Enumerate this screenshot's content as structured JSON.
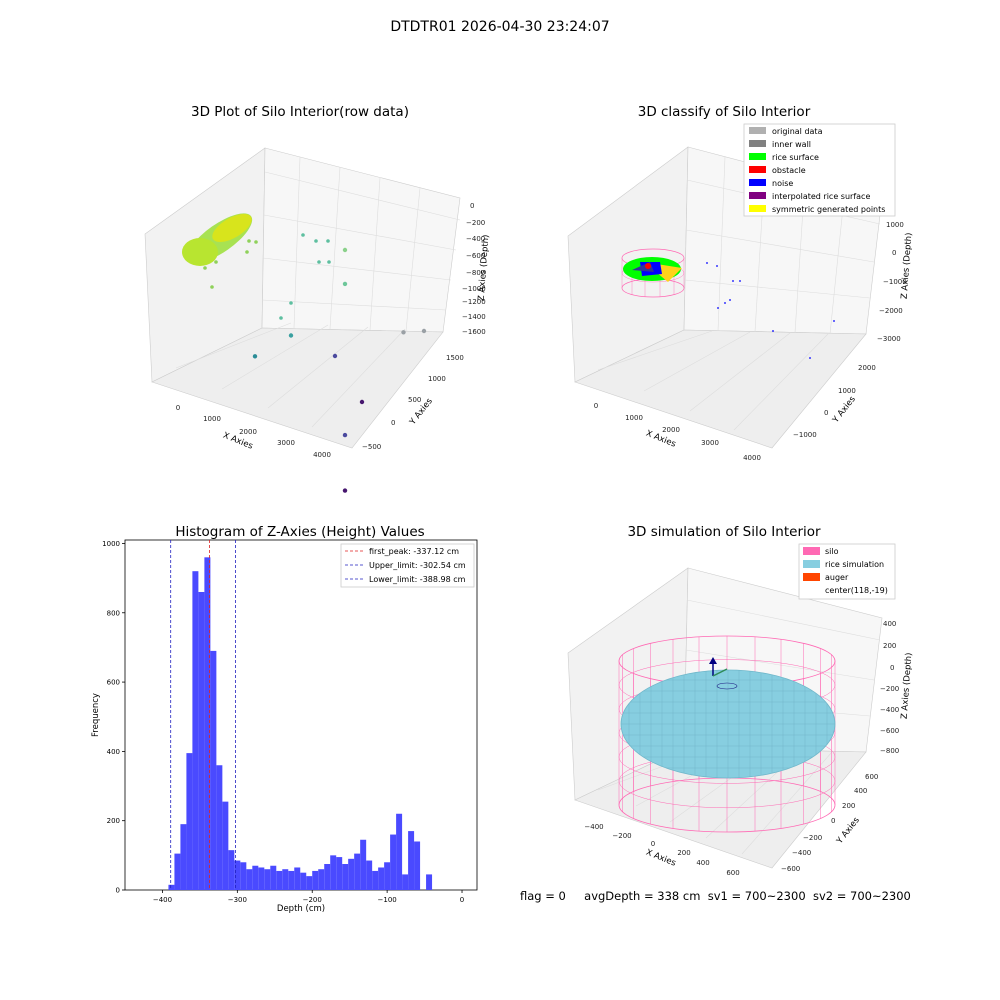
{
  "figure_title": "DTDTR01 2026-04-30 23:24:07",
  "footer": {
    "flag": "flag = 0",
    "avg_depth": "avgDepth = 338 cm",
    "sv1": "sv1 = 700~2300",
    "sv2": "sv2 = 700~2300"
  },
  "colors": {
    "histogram_bar": "#4a4aff",
    "first_peak_line": "#e02020",
    "limit_line": "#2020c0",
    "silo": "#ff69b4",
    "rice_simulation": "#87cee0",
    "auger": "#ff4500",
    "original_data": "#b0b0b0",
    "inner_wall": "#808080",
    "rice_surface": "#00ff00",
    "obstacle": "#ff0000",
    "noise": "#0000ff",
    "interpolated_rice_surface": "#800080",
    "symmetric_generated_points": "#ffff00"
  },
  "chart_data": [
    {
      "type": "scatter",
      "projection": "3d",
      "title": "3D Plot of Silo Interior(row data)",
      "xlabel": "X Axies",
      "ylabel": "Y Axies",
      "zlabel": "Z Axies (Depth)",
      "x_ticks": [
        "0",
        "1000",
        "2000",
        "3000",
        "4000"
      ],
      "y_ticks": [
        "−500",
        "0",
        "500",
        "1000",
        "1500"
      ],
      "z_ticks": [
        "0",
        "−200",
        "−400",
        "−600",
        "−800",
        "−1000",
        "−1200",
        "−1400",
        "−1600"
      ],
      "colormap": "viridis (by depth)",
      "point_clusters": [
        {
          "x": 100,
          "y": 0,
          "z": -350,
          "note": "dense rice surface cluster"
        },
        {
          "x": 3000,
          "y": 1000,
          "z": -450
        },
        {
          "x": 3200,
          "y": 800,
          "z": -600
        },
        {
          "x": 2500,
          "y": 300,
          "z": -900
        },
        {
          "x": 1900,
          "y": 100,
          "z": -1100
        },
        {
          "x": 3900,
          "y": 1400,
          "z": -1500
        },
        {
          "x": 3800,
          "y": 200,
          "z": -1600
        },
        {
          "x": 4300,
          "y": -300,
          "z": -1650
        }
      ]
    },
    {
      "type": "scatter",
      "projection": "3d",
      "title": "3D classify of Silo Interior",
      "xlabel": "X Axies",
      "ylabel": "Y Axies",
      "zlabel": "Z Axies (Depth)",
      "x_ticks": [
        "0",
        "1000",
        "2000",
        "3000",
        "4000"
      ],
      "y_ticks": [
        "−1000",
        "0",
        "1000",
        "2000"
      ],
      "z_ticks": [
        "1000",
        "0",
        "−1000",
        "−2000",
        "−3000"
      ],
      "legend_position": "top-right",
      "legend": [
        {
          "label": "original data",
          "color": "#b0b0b0"
        },
        {
          "label": "inner wall",
          "color": "#808080"
        },
        {
          "label": "rice surface",
          "color": "#00ff00"
        },
        {
          "label": "obstacle",
          "color": "#ff0000"
        },
        {
          "label": "noise",
          "color": "#0000ff"
        },
        {
          "label": "interpolated rice surface",
          "color": "#800080"
        },
        {
          "label": "symmetric generated points",
          "color": "#ffff00"
        }
      ]
    },
    {
      "type": "bar",
      "title": "Histogram of Z-Axies (Height) Values",
      "xlabel": "Depth (cm)",
      "ylabel": "Frequency",
      "xlim": [
        -450,
        20
      ],
      "ylim": [
        0,
        1010
      ],
      "x_ticks": [
        -400,
        -300,
        -200,
        -100,
        0
      ],
      "y_ticks": [
        0,
        200,
        400,
        600,
        800,
        1000
      ],
      "bin_width": 8,
      "bins_start": -392,
      "values": [
        15,
        105,
        190,
        395,
        920,
        860,
        960,
        690,
        360,
        255,
        115,
        85,
        80,
        60,
        70,
        65,
        60,
        70,
        55,
        60,
        55,
        65,
        50,
        40,
        55,
        60,
        75,
        100,
        95,
        75,
        90,
        105,
        145,
        85,
        55,
        65,
        80,
        160,
        220,
        45,
        170,
        140,
        0,
        45
      ],
      "bar_color": "#4a4aff",
      "lines": [
        {
          "label": "first_peak: -337.12 cm",
          "x": -337.12,
          "color": "#e02020"
        },
        {
          "label": "Upper_limit: -302.54 cm",
          "x": -302.54,
          "color": "#2020c0"
        },
        {
          "label": "Lower_limit: -388.98 cm",
          "x": -388.98,
          "color": "#2020c0"
        }
      ],
      "legend_position": "top-right"
    },
    {
      "type": "surface",
      "projection": "3d",
      "title": "3D simulation of Silo Interior",
      "xlabel": "X Axies",
      "ylabel": "Y Axies",
      "zlabel": "Z Axies (Depth)",
      "x_ticks": [
        "−400",
        "−200",
        "0",
        "200",
        "400",
        "600"
      ],
      "y_ticks": [
        "−600",
        "−400",
        "−200",
        "0",
        "200",
        "400",
        "600"
      ],
      "z_ticks": [
        "400",
        "200",
        "0",
        "−200",
        "−400",
        "−600",
        "−800"
      ],
      "legend_position": "top-right",
      "legend": [
        {
          "label": "silo",
          "color": "#ff69b4"
        },
        {
          "label": "rice simulation",
          "color": "#87cee0"
        },
        {
          "label": "auger",
          "color": "#ff4500"
        },
        {
          "label": "center(118,-19)",
          "color": ""
        }
      ]
    }
  ]
}
